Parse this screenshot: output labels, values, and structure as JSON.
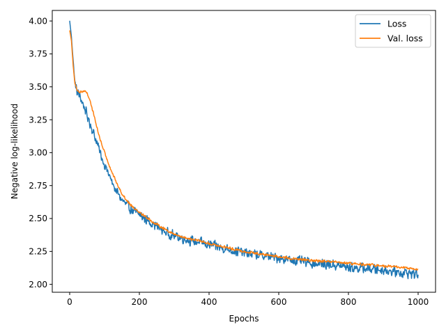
{
  "chart_data": {
    "type": "line",
    "title": "",
    "xlabel": "Epochs",
    "ylabel": "Negative log-likelihood",
    "xlim": [
      -50,
      1050
    ],
    "ylim": [
      1.94,
      4.08
    ],
    "xticks": [
      0,
      200,
      400,
      600,
      800,
      1000
    ],
    "yticks": [
      2.0,
      2.25,
      2.5,
      2.75,
      3.0,
      3.25,
      3.5,
      3.75,
      4.0
    ],
    "xtick_labels": [
      "0",
      "200",
      "400",
      "600",
      "800",
      "1000"
    ],
    "ytick_labels": [
      "2.00",
      "2.25",
      "2.50",
      "2.75",
      "3.00",
      "3.25",
      "3.50",
      "3.75",
      "4.00"
    ],
    "grid": false,
    "legend_position": "top-right",
    "series": [
      {
        "name": "Loss",
        "color": "#1f77b4",
        "noise_amplitude": 0.045,
        "x": [
          0,
          5,
          10,
          15,
          20,
          30,
          40,
          50,
          60,
          70,
          80,
          90,
          100,
          110,
          120,
          130,
          140,
          150,
          160,
          180,
          200,
          220,
          240,
          260,
          280,
          300,
          325,
          350,
          375,
          400,
          450,
          500,
          550,
          600,
          650,
          700,
          750,
          800,
          850,
          900,
          950,
          1000
        ],
        "values": [
          4.0,
          3.88,
          3.7,
          3.53,
          3.47,
          3.42,
          3.36,
          3.28,
          3.21,
          3.14,
          3.06,
          2.98,
          2.91,
          2.85,
          2.78,
          2.73,
          2.68,
          2.64,
          2.61,
          2.56,
          2.53,
          2.49,
          2.46,
          2.42,
          2.39,
          2.37,
          2.35,
          2.33,
          2.32,
          2.3,
          2.27,
          2.24,
          2.22,
          2.2,
          2.18,
          2.16,
          2.15,
          2.13,
          2.12,
          2.11,
          2.09,
          2.08
        ]
      },
      {
        "name": "Val. loss",
        "color": "#ff7f0e",
        "noise_amplitude": 0.012,
        "x": [
          0,
          5,
          10,
          15,
          20,
          30,
          40,
          45,
          50,
          55,
          60,
          70,
          80,
          90,
          100,
          110,
          120,
          130,
          140,
          150,
          160,
          180,
          200,
          220,
          240,
          260,
          280,
          300,
          325,
          350,
          375,
          400,
          450,
          500,
          550,
          600,
          650,
          700,
          750,
          800,
          850,
          900,
          950,
          1000
        ],
        "values": [
          3.93,
          3.85,
          3.66,
          3.52,
          3.48,
          3.46,
          3.47,
          3.47,
          3.45,
          3.42,
          3.38,
          3.28,
          3.17,
          3.08,
          3.0,
          2.93,
          2.86,
          2.8,
          2.74,
          2.69,
          2.65,
          2.59,
          2.55,
          2.51,
          2.47,
          2.44,
          2.41,
          2.38,
          2.36,
          2.34,
          2.33,
          2.31,
          2.28,
          2.25,
          2.23,
          2.21,
          2.19,
          2.18,
          2.17,
          2.16,
          2.15,
          2.14,
          2.13,
          2.11
        ]
      }
    ]
  }
}
